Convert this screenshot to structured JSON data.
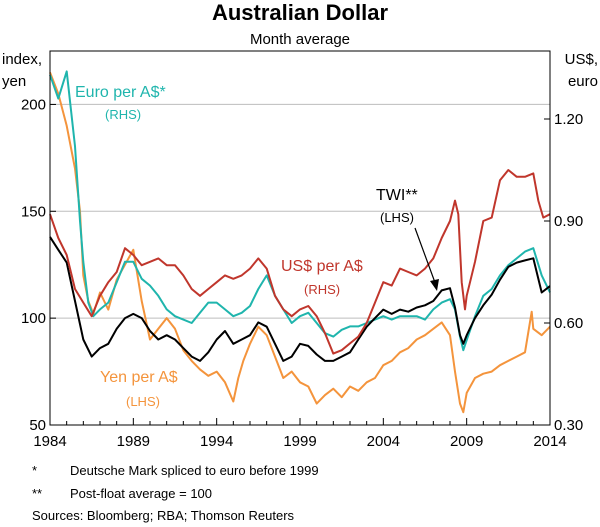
{
  "chart_data": {
    "type": "line",
    "title": "Australian Dollar",
    "subtitle": "Month average",
    "left_axis": {
      "label_line1": "index,",
      "label_line2": "yen",
      "ylim": [
        50,
        225
      ],
      "ticks": [
        50,
        100,
        150,
        200
      ]
    },
    "right_axis": {
      "label_line1": "US$,",
      "label_line2": "euro",
      "ylim": [
        0.3,
        1.4
      ],
      "ticks": [
        "0.30",
        "0.60",
        "0.90",
        "1.20"
      ]
    },
    "x_axis": {
      "xlim": [
        1984,
        2014
      ],
      "ticks": [
        1984,
        1989,
        1994,
        1999,
        2004,
        2009,
        2014
      ]
    },
    "series": [
      {
        "name": "Yen per A$",
        "axis": "left",
        "color": "#f4943c",
        "x": [
          1984,
          1984.5,
          1985,
          1985.5,
          1985.8,
          1986,
          1986.3,
          1986.6,
          1987,
          1987.5,
          1988,
          1988.5,
          1989,
          1989.5,
          1990,
          1990.5,
          1991,
          1991.5,
          1992,
          1992.5,
          1993,
          1993.5,
          1994,
          1994.5,
          1995,
          1995.3,
          1995.6,
          1996,
          1996.5,
          1997,
          1997.5,
          1998,
          1998.5,
          1999,
          1999.5,
          2000,
          2000.5,
          2001,
          2001.5,
          2002,
          2002.5,
          2003,
          2003.5,
          2004,
          2004.5,
          2005,
          2005.5,
          2006,
          2006.5,
          2007,
          2007.5,
          2008,
          2008.3,
          2008.6,
          2008.8,
          2009,
          2009.5,
          2010,
          2010.5,
          2011,
          2011.5,
          2012,
          2012.5,
          2012.9,
          2013,
          2013.5,
          2014
        ],
        "values": [
          215,
          205,
          190,
          170,
          150,
          120,
          108,
          102,
          112,
          104,
          118,
          125,
          132,
          108,
          90,
          95,
          100,
          95,
          85,
          80,
          76,
          73,
          75,
          70,
          61,
          72,
          80,
          88,
          96,
          92,
          82,
          72,
          75,
          70,
          68,
          60,
          64,
          67,
          63,
          68,
          66,
          70,
          72,
          78,
          80,
          84,
          86,
          90,
          92,
          95,
          98,
          92,
          75,
          60,
          56,
          65,
          72,
          74,
          75,
          78,
          80,
          82,
          84,
          103,
          95,
          92,
          96
        ]
      },
      {
        "name": "Euro per A$*",
        "axis": "right",
        "color": "#1fb5ad",
        "x": [
          1984,
          1984.5,
          1985,
          1985.5,
          1985.8,
          1986,
          1986.3,
          1986.6,
          1987,
          1987.5,
          1988,
          1988.5,
          1989,
          1989.5,
          1990,
          1990.5,
          1991,
          1991.5,
          1992,
          1992.5,
          1993,
          1993.5,
          1994,
          1994.5,
          1995,
          1995.5,
          1996,
          1996.5,
          1997,
          1997.5,
          1998,
          1998.5,
          1999,
          1999.5,
          2000,
          2000.5,
          2001,
          2001.5,
          2002,
          2002.5,
          2003,
          2003.5,
          2004,
          2004.5,
          2005,
          2005.5,
          2006,
          2006.5,
          2007,
          2007.5,
          2008,
          2008.3,
          2008.6,
          2008.8,
          2009,
          2009.5,
          2010,
          2010.5,
          2011,
          2011.5,
          2012,
          2012.5,
          2013,
          2013.5,
          2014
        ],
        "values": [
          1.33,
          1.26,
          1.34,
          1.12,
          0.9,
          0.78,
          0.66,
          0.62,
          0.64,
          0.66,
          0.72,
          0.78,
          0.78,
          0.73,
          0.71,
          0.68,
          0.64,
          0.62,
          0.61,
          0.6,
          0.63,
          0.66,
          0.66,
          0.64,
          0.62,
          0.63,
          0.65,
          0.7,
          0.74,
          0.68,
          0.64,
          0.6,
          0.62,
          0.63,
          0.6,
          0.57,
          0.56,
          0.58,
          0.59,
          0.59,
          0.6,
          0.61,
          0.62,
          0.61,
          0.62,
          0.62,
          0.62,
          0.61,
          0.64,
          0.66,
          0.67,
          0.64,
          0.56,
          0.52,
          0.55,
          0.62,
          0.68,
          0.7,
          0.74,
          0.77,
          0.79,
          0.81,
          0.82,
          0.74,
          0.69
        ]
      },
      {
        "name": "TWI**",
        "axis": "left",
        "color": "#000000",
        "x": [
          1984,
          1984.5,
          1985,
          1985.5,
          1986,
          1986.5,
          1987,
          1987.5,
          1988,
          1988.5,
          1989,
          1989.5,
          1990,
          1990.5,
          1991,
          1991.5,
          1992,
          1992.5,
          1993,
          1993.5,
          1994,
          1994.5,
          1995,
          1995.5,
          1996,
          1996.5,
          1997,
          1997.5,
          1998,
          1998.5,
          1999,
          1999.5,
          2000,
          2000.5,
          2001,
          2001.5,
          2002,
          2002.5,
          2003,
          2003.5,
          2004,
          2004.5,
          2005,
          2005.5,
          2006,
          2006.5,
          2007,
          2007.5,
          2008,
          2008.3,
          2008.6,
          2008.8,
          2009,
          2009.5,
          2010,
          2010.5,
          2011,
          2011.5,
          2012,
          2012.5,
          2013,
          2013.5,
          2014
        ],
        "values": [
          138,
          132,
          126,
          108,
          90,
          82,
          86,
          88,
          95,
          100,
          102,
          100,
          94,
          90,
          92,
          90,
          86,
          82,
          80,
          84,
          90,
          94,
          88,
          90,
          92,
          98,
          96,
          88,
          80,
          82,
          88,
          87,
          83,
          80,
          80,
          82,
          84,
          90,
          96,
          100,
          104,
          102,
          104,
          103,
          105,
          106,
          108,
          113,
          114,
          105,
          92,
          88,
          92,
          100,
          106,
          111,
          118,
          124,
          126,
          127,
          128,
          112,
          115
        ]
      },
      {
        "name": "US$ per A$",
        "axis": "right",
        "color": "#c0362c",
        "x": [
          1984,
          1984.5,
          1985,
          1985.5,
          1986,
          1986.5,
          1987,
          1987.5,
          1988,
          1988.5,
          1989,
          1989.5,
          1990,
          1990.5,
          1991,
          1991.5,
          1992,
          1992.5,
          1993,
          1993.5,
          1994,
          1994.5,
          1995,
          1995.5,
          1996,
          1996.5,
          1997,
          1997.5,
          1998,
          1998.5,
          1999,
          1999.5,
          2000,
          2000.5,
          2001,
          2001.5,
          2002,
          2002.5,
          2003,
          2003.5,
          2004,
          2004.5,
          2005,
          2005.5,
          2006,
          2006.5,
          2007,
          2007.5,
          2008,
          2008.3,
          2008.5,
          2008.7,
          2008.9,
          2009,
          2009.5,
          2010,
          2010.5,
          2011,
          2011.5,
          2012,
          2012.5,
          2013,
          2013.3,
          2013.6,
          2014
        ],
        "values": [
          0.92,
          0.85,
          0.8,
          0.7,
          0.66,
          0.62,
          0.68,
          0.72,
          0.75,
          0.82,
          0.8,
          0.77,
          0.78,
          0.79,
          0.77,
          0.77,
          0.74,
          0.7,
          0.68,
          0.7,
          0.72,
          0.74,
          0.73,
          0.74,
          0.76,
          0.79,
          0.76,
          0.68,
          0.64,
          0.62,
          0.64,
          0.65,
          0.62,
          0.57,
          0.51,
          0.52,
          0.54,
          0.56,
          0.6,
          0.66,
          0.72,
          0.71,
          0.76,
          0.75,
          0.74,
          0.76,
          0.79,
          0.85,
          0.9,
          0.96,
          0.92,
          0.72,
          0.64,
          0.68,
          0.78,
          0.9,
          0.91,
          1.02,
          1.05,
          1.03,
          1.03,
          1.04,
          0.96,
          0.91,
          0.92
        ]
      }
    ],
    "annotations": [
      {
        "text": "Euro per A$*",
        "sub": "(RHS)",
        "color": "#1fb5ad"
      },
      {
        "text": "TWI**",
        "sub": "(LHS)",
        "color": "#000000"
      },
      {
        "text": "US$ per A$",
        "sub": "(RHS)",
        "color": "#c0362c"
      },
      {
        "text": "Yen per A$",
        "sub": "(LHS)",
        "color": "#f4943c"
      }
    ]
  },
  "notes": [
    {
      "mark": "*",
      "text": "Deutsche Mark spliced to euro before 1999"
    },
    {
      "mark": "**",
      "text": "Post-float average = 100"
    }
  ],
  "sources": "Sources:  Bloomberg; RBA; Thomson Reuters"
}
